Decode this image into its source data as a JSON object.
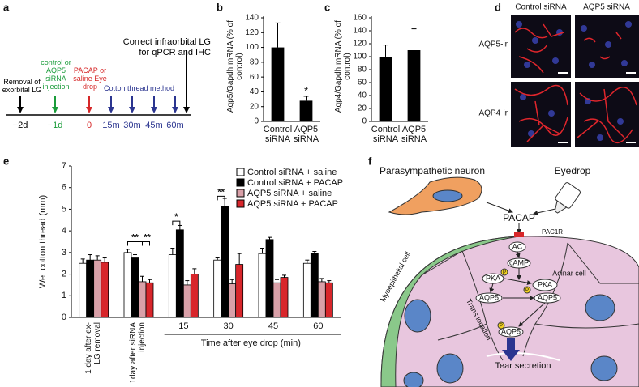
{
  "timeline": {
    "letter": "a",
    "ticks": [
      "−2d",
      "−1d",
      "0",
      "15m",
      "30m",
      "45m",
      "60m"
    ],
    "arrow_colors": [
      "#000000",
      "#1a9c3a",
      "#d62728",
      "#2b3590",
      "#2b3590",
      "#2b3590",
      "#2b3590",
      "#000000"
    ],
    "labels": [
      {
        "text": "Removal of exorbital LG",
        "color": "#000000"
      },
      {
        "text": "control or AQP5 siRNA injection",
        "color": "#1a9c3a"
      },
      {
        "text": "PACAP or saline Eye drop",
        "color": "#d62728"
      },
      {
        "text": "Cotton thread method",
        "color": "#2b3590"
      },
      {
        "text": "Correct infraorbital LG for qPCR and IHC",
        "color": "#000000"
      }
    ]
  },
  "chart_data": [
    {
      "type": "bar",
      "letter": "b",
      "ylabel": "Aqp5/Gapdh mRNA (% of control)",
      "categories": [
        "Control siRNA",
        "AQP5 siRNA"
      ],
      "values": [
        100,
        28
      ],
      "errors": [
        33,
        6
      ],
      "color": "#000000",
      "ylim": [
        0,
        140
      ],
      "yticks": [
        0,
        20,
        40,
        60,
        80,
        100,
        120,
        140
      ],
      "annotations": [
        "*"
      ]
    },
    {
      "type": "bar",
      "letter": "c",
      "ylabel": "Aqp4/Gapdh mRNA (% of control)",
      "categories": [
        "Control siRNA",
        "AQP5 siRNA"
      ],
      "values": [
        100,
        110
      ],
      "errors": [
        18,
        33
      ],
      "color": "#000000",
      "ylim": [
        0,
        160
      ],
      "yticks": [
        0,
        20,
        40,
        60,
        80,
        100,
        120,
        140,
        160
      ]
    },
    {
      "type": "grouped-bar",
      "letter": "e",
      "ylabel": "Wet cotton thread (mm)",
      "xlabel": "Time after eye drop (min)",
      "categories": [
        "1 day after ex-LG removal",
        "1day after siRNA injection",
        "15",
        "30",
        "45",
        "60"
      ],
      "series": [
        {
          "name": "Control siRNA + saline",
          "color": "#ffffff",
          "values": [
            2.5,
            3.0,
            2.9,
            2.65,
            2.95,
            2.5
          ],
          "errors": [
            0.2,
            0.15,
            0.3,
            0.1,
            0.25,
            0.15
          ]
        },
        {
          "name": "Control siRNA + PACAP",
          "color": "#000000",
          "values": [
            2.65,
            2.75,
            4.05,
            5.15,
            3.6,
            2.95
          ],
          "errors": [
            0.25,
            0.15,
            0.2,
            0.35,
            0.1,
            0.1
          ]
        },
        {
          "name": "AQP5 siRNA + saline",
          "color": "#d9a0a8",
          "values": [
            2.65,
            1.65,
            1.5,
            1.55,
            1.6,
            1.65
          ],
          "errors": [
            0.2,
            0.25,
            0.2,
            0.2,
            0.15,
            0.15
          ]
        },
        {
          "name": "AQP5 siRNA + PACAP",
          "color": "#d8262b",
          "values": [
            2.55,
            1.6,
            2.0,
            2.45,
            1.85,
            1.6
          ],
          "errors": [
            0.2,
            0.15,
            0.25,
            0.5,
            0.1,
            0.1
          ]
        }
      ],
      "ylim": [
        0,
        7
      ],
      "yticks": [
        0,
        1,
        2,
        3,
        4,
        5,
        6,
        7
      ],
      "annotations": [
        "**",
        "**",
        "*",
        "**"
      ]
    }
  ],
  "images": {
    "letter": "d",
    "columns": [
      "Control siRNA",
      "AQP5 siRNA"
    ],
    "rows": [
      "AQP5-ir",
      "AQP4-ir"
    ]
  },
  "diagram": {
    "letter": "f",
    "phospho": "P",
    "nodes": [
      "Parasympathetic neuron",
      "Eyedrop",
      "PACAP",
      "PAC1R",
      "Myoepithelial cell",
      "Acinar cell",
      "AC",
      "cAMP",
      "PKA",
      "PKA",
      "AQP5",
      "AQP5",
      "Trans location",
      "AQP5",
      "Tear secretion"
    ]
  }
}
